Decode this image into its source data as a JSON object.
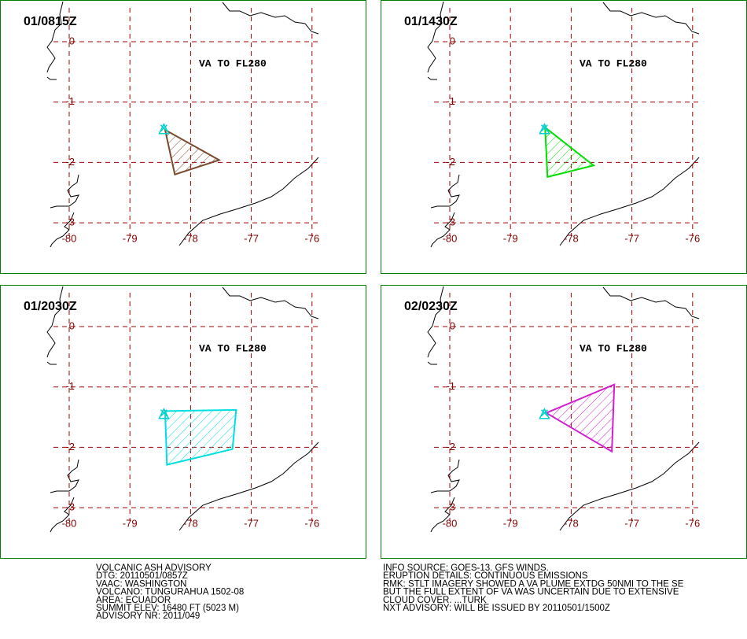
{
  "panels": [
    {
      "time": "01/0815Z",
      "label": "VA TO FL280",
      "plume": {
        "color": "#7b4a2c",
        "lon": [
          -78.42,
          -77.53,
          -78.26
        ],
        "lat": [
          -1.46,
          -1.96,
          -2.2
        ]
      }
    },
    {
      "time": "01/1430Z",
      "label": "VA TO FL280",
      "plume": {
        "color": "#00e000",
        "lon": [
          -78.43,
          -77.63,
          -78.39
        ],
        "lat": [
          -1.42,
          -2.05,
          -2.24
        ]
      }
    },
    {
      "time": "01/2030Z",
      "label": "VA TO FL280",
      "plume": {
        "color": "#00e0e0",
        "lon": [
          -78.42,
          -77.25,
          -77.31,
          -78.39
        ],
        "lat": [
          -1.4,
          -1.38,
          -2.03,
          -2.29
        ]
      }
    },
    {
      "time": "02/0230Z",
      "label": "VA TO FL280",
      "plume": {
        "color": "#d020d0",
        "lon": [
          -78.41,
          -77.29,
          -77.33
        ],
        "lat": [
          -1.43,
          -0.96,
          -2.07
        ]
      }
    }
  ],
  "grid": {
    "lon": [
      -80,
      -79,
      -78,
      -77,
      -76
    ],
    "lat": [
      0,
      -1,
      -2,
      -3
    ]
  },
  "volcano": {
    "lon": -78.44,
    "lat": -1.47
  },
  "advisory": {
    "left": [
      "VOLCANIC ASH ADVISORY",
      "DTG: 20110501/0857Z",
      "VAAC: WASHINGTON",
      "VOLCANO: TUNGURAHUA 1502-08",
      "AREA: ECUADOR",
      "SUMMIT ELEV: 16480 FT (5023 M)",
      "ADVISORY NR: 2011/049"
    ],
    "right": [
      "INFO SOURCE: GOES-13. GFS WINDS.",
      "ERUPTION DETAILS: CONTINUOUS EMISSIONS",
      "RMK: STLT IMAGERY SHOWED A VA PLUME EXTDG 50NMI TO THE SE",
      "BUT THE FULL EXTENT OF VA WAS UNCERTAIN DUE TO EXTENSIVE",
      "CLOUD COVER. ...TURK",
      "NXT ADVISORY: WILL BE ISSUED BY 20110501/1500Z"
    ]
  }
}
